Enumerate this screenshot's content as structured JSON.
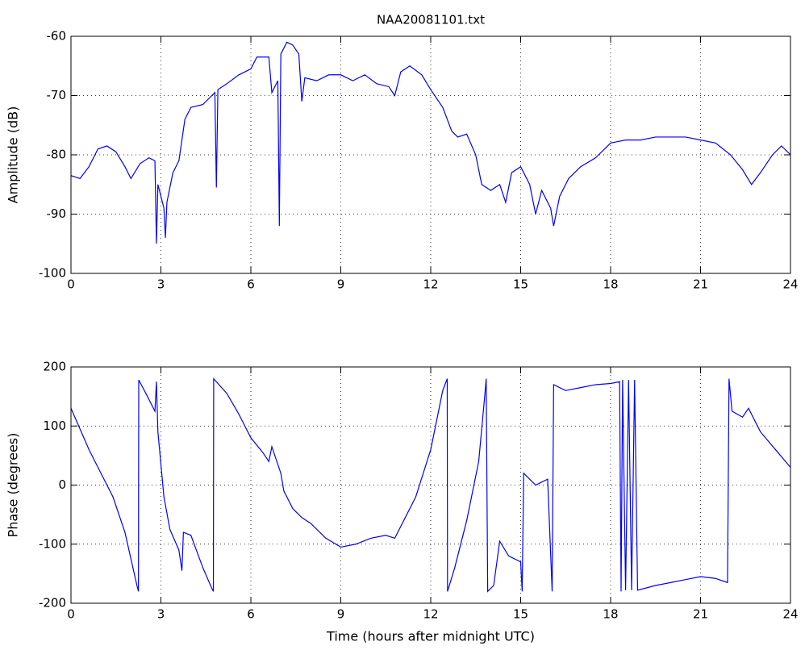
{
  "chart_data": [
    {
      "type": "line",
      "title": "NAA20081101.txt",
      "ylabel": "Amplitude (dB)",
      "xlim": [
        0,
        24
      ],
      "xticks": [
        0,
        3,
        6,
        9,
        12,
        15,
        18,
        21,
        24
      ],
      "ylim": [
        -100,
        -60
      ],
      "yticks": [
        -100,
        -90,
        -80,
        -70,
        -60
      ],
      "grid": true,
      "series": [
        {
          "name": "Amplitude",
          "color": "#0000ff",
          "x": [
            0,
            0.3,
            0.6,
            0.9,
            1.2,
            1.5,
            1.8,
            2.0,
            2.3,
            2.6,
            2.8,
            2.85,
            2.9,
            3.1,
            3.15,
            3.2,
            3.4,
            3.6,
            3.8,
            4.0,
            4.4,
            4.8,
            4.85,
            4.9,
            5.2,
            5.6,
            6.0,
            6.2,
            6.6,
            6.7,
            6.9,
            6.95,
            7.0,
            7.2,
            7.4,
            7.6,
            7.7,
            7.8,
            8.2,
            8.6,
            9.0,
            9.4,
            9.8,
            10.2,
            10.6,
            10.8,
            11.0,
            11.3,
            11.7,
            12.0,
            12.4,
            12.7,
            12.9,
            13.2,
            13.5,
            13.7,
            14.0,
            14.3,
            14.5,
            14.7,
            15.0,
            15.3,
            15.5,
            15.7,
            16.0,
            16.1,
            16.3,
            16.6,
            17.0,
            17.5,
            18.0,
            18.5,
            19.0,
            19.5,
            20.0,
            20.5,
            21.0,
            21.5,
            22.0,
            22.4,
            22.7,
            23.0,
            23.4,
            23.7,
            24.0
          ],
          "values": [
            -83.5,
            -84,
            -82,
            -79,
            -78.5,
            -79.5,
            -82,
            -84,
            -81.5,
            -80.5,
            -81,
            -95,
            -85,
            -89,
            -94,
            -88,
            -83,
            -81,
            -74,
            -72,
            -71.5,
            -69.5,
            -85.5,
            -69,
            -68,
            -66.5,
            -65.5,
            -63.5,
            -63.5,
            -69.5,
            -67.5,
            -92,
            -63,
            -61,
            -61.5,
            -63,
            -71,
            -67,
            -67.5,
            -66.5,
            -66.5,
            -67.5,
            -66.5,
            -68,
            -68.5,
            -70,
            -66,
            -65,
            -66.5,
            -69,
            -72,
            -76,
            -77,
            -76.5,
            -80,
            -85,
            -86,
            -85,
            -88,
            -83,
            -82,
            -85,
            -90,
            -86,
            -89,
            -92,
            -87,
            -84,
            -82,
            -80.5,
            -78,
            -77.5,
            -77.5,
            -77,
            -77,
            -77,
            -77.5,
            -78,
            -80,
            -82.5,
            -85,
            -83,
            -80,
            -78.5,
            -80
          ]
        }
      ]
    },
    {
      "type": "line",
      "xlabel": "Time (hours after midnight UTC)",
      "ylabel": "Phase (degrees)",
      "xlim": [
        0,
        24
      ],
      "xticks": [
        0,
        3,
        6,
        9,
        12,
        15,
        18,
        21,
        24
      ],
      "ylim": [
        -200,
        200
      ],
      "yticks": [
        -200,
        -100,
        0,
        100,
        200
      ],
      "grid": true,
      "series": [
        {
          "name": "Phase",
          "color": "#0000ff",
          "x": [
            0,
            0.3,
            0.6,
            1.0,
            1.4,
            1.8,
            2.2,
            2.25,
            2.26,
            2.5,
            2.8,
            2.85,
            2.9,
            3.1,
            3.3,
            3.6,
            3.7,
            3.75,
            4.0,
            4.4,
            4.7,
            4.75,
            4.76,
            5.2,
            5.6,
            6.0,
            6.4,
            6.6,
            6.7,
            7.0,
            7.1,
            7.4,
            7.7,
            8.0,
            8.5,
            9.0,
            9.5,
            10.0,
            10.5,
            10.8,
            11.0,
            11.5,
            12.0,
            12.4,
            12.55,
            12.56,
            12.8,
            13.2,
            13.6,
            13.8,
            13.85,
            13.9,
            14.1,
            14.3,
            14.6,
            15.0,
            15.05,
            15.1,
            15.5,
            15.9,
            16.05,
            16.1,
            16.5,
            17.0,
            17.5,
            18.0,
            18.3,
            18.35,
            18.4,
            18.5,
            18.6,
            18.7,
            18.8,
            18.9,
            19.5,
            20.0,
            20.5,
            21.0,
            21.5,
            21.9,
            21.95,
            22.05,
            22.4,
            22.6,
            23.0,
            23.5,
            24.0
          ],
          "values": [
            130,
            95,
            60,
            20,
            -20,
            -80,
            -170,
            -180,
            178,
            155,
            125,
            175,
            90,
            -20,
            -75,
            -110,
            -145,
            -80,
            -85,
            -140,
            -175,
            -180,
            180,
            155,
            120,
            80,
            55,
            40,
            65,
            20,
            -10,
            -40,
            -55,
            -65,
            -90,
            -105,
            -100,
            -90,
            -85,
            -90,
            -70,
            -20,
            60,
            160,
            180,
            -180,
            -140,
            -60,
            40,
            150,
            180,
            -180,
            -170,
            -95,
            -120,
            -130,
            -180,
            20,
            0,
            10,
            -180,
            170,
            160,
            165,
            170,
            172,
            175,
            -180,
            178,
            -178,
            178,
            -178,
            178,
            -178,
            -170,
            -165,
            -160,
            -155,
            -158,
            -165,
            180,
            125,
            115,
            130,
            90,
            60,
            30
          ]
        }
      ]
    }
  ]
}
